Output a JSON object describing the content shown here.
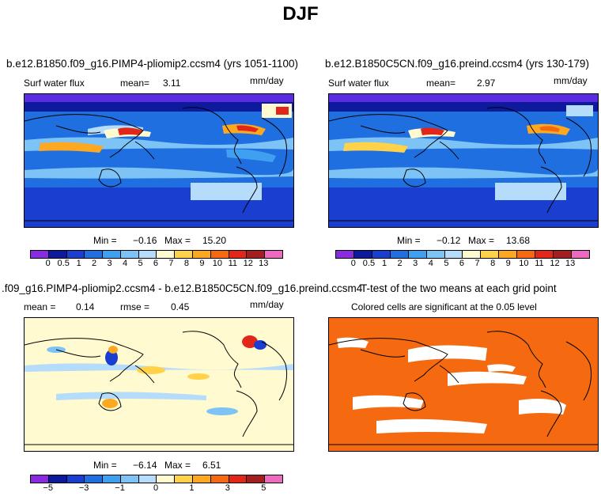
{
  "figure": {
    "title": "DJF"
  },
  "panels": {
    "top_left": {
      "title": "b.e12.B1850.f09_g16.PIMP4-pliomip2.ccsm4 (yrs 1051-1100)",
      "variable": "Surf water flux",
      "mean_label": "mean=",
      "mean_value": "3.11",
      "units": "mm/day",
      "min_label": "Min =",
      "min_value": "−0.16",
      "max_label": "Max =",
      "max_value": "15.20"
    },
    "top_right": {
      "title": "b.e12.B1850C5CN.f09_g16.preind.ccsm4 (yrs 130-179)",
      "variable": "Surf water flux",
      "mean_label": "mean=",
      "mean_value": "2.97",
      "units": "mm/day",
      "min_label": "Min =",
      "min_value": "−0.12",
      "max_label": "Max =",
      "max_value": "13.68"
    },
    "bottom_left": {
      "title": ".f09_g16.PIMP4-pliomip2.ccsm4 - b.e12.B1850C5CN.f09_g16.preind.ccsm4",
      "mean_label": "mean =",
      "mean_value": "0.14",
      "rmse_label": "rmse =",
      "rmse_value": "0.45",
      "units": "mm/day",
      "min_label": "Min =",
      "min_value": "−6.14",
      "max_label": "Max =",
      "max_value": "6.51"
    },
    "bottom_right": {
      "title": "T-test of the two means at each grid point",
      "subtitle": "Colored cells are significant at the 0.05 level"
    }
  },
  "colorbars": {
    "absolute": {
      "colors": [
        "#8a2be2",
        "#0d1a9c",
        "#1a3fd0",
        "#1f6fe0",
        "#3f9ff0",
        "#7ec3f6",
        "#b5dcfa",
        "#fffad0",
        "#ffd24a",
        "#fca820",
        "#f56a10",
        "#e2261a",
        "#a31f1f",
        "#ee6ac0"
      ],
      "tick_labels": [
        "0",
        "0.5",
        "1",
        "2",
        "3",
        "4",
        "5",
        "6",
        "7",
        "8",
        "9",
        "10",
        "11",
        "12",
        "13"
      ]
    },
    "difference": {
      "colors": [
        "#8a2be2",
        "#0d1a9c",
        "#1a3fd0",
        "#1f6fe0",
        "#3f9ff0",
        "#7ec3f6",
        "#b5dcfa",
        "#fffad0",
        "#ffd24a",
        "#fca820",
        "#f56a10",
        "#e2261a",
        "#a31f1f",
        "#ee6ac0"
      ],
      "tick_labels": [
        "−5",
        "−3",
        "−1",
        "0",
        "1",
        "3",
        "5"
      ]
    }
  }
}
